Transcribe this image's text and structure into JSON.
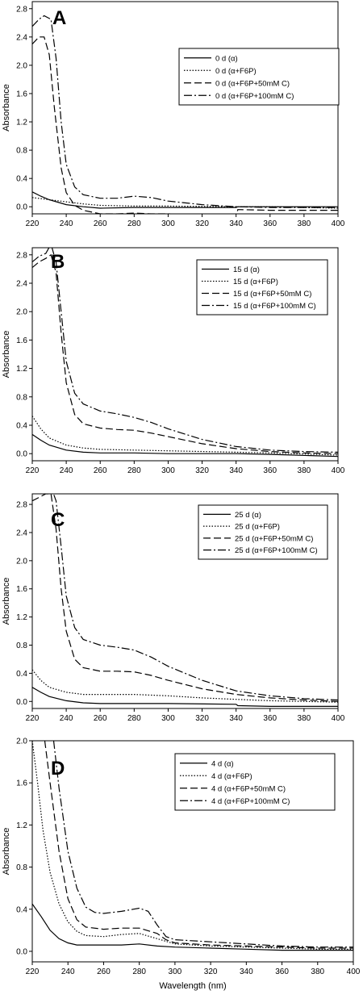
{
  "chart_data": [
    {
      "type": "line",
      "panel_label": "A",
      "xlabel": "",
      "ylabel": "Absorbance",
      "xlim": [
        220,
        400
      ],
      "ylim": [
        -0.1,
        2.9
      ],
      "x_ticks": [
        220,
        240,
        260,
        280,
        300,
        320,
        340,
        360,
        380,
        400
      ],
      "y_ticks": [
        0.0,
        0.4,
        0.8,
        1.2,
        1.6,
        2.0,
        2.4,
        2.8
      ],
      "y_tick_labels": [
        "0.0",
        "0.4",
        "0.8",
        "1.2",
        "1.6",
        "2.0",
        "2.4",
        "2.8"
      ],
      "legend_position": "top-right",
      "series": [
        {
          "name": "0 d (α)",
          "style": "solid",
          "x": [
            220,
            225,
            230,
            240,
            250,
            260,
            280,
            300,
            340,
            341,
            360,
            400
          ],
          "y": [
            0.21,
            0.15,
            0.1,
            0.03,
            0.0,
            -0.02,
            -0.01,
            -0.01,
            -0.01,
            0.0,
            0.0,
            0.0
          ]
        },
        {
          "name": "0 d (α+F6P)",
          "style": "dotted",
          "x": [
            220,
            230,
            240,
            250,
            260,
            280,
            300,
            340,
            341,
            360,
            400
          ],
          "y": [
            0.13,
            0.1,
            0.07,
            0.04,
            0.02,
            0.01,
            0.01,
            0.0,
            0.0,
            0.0,
            -0.02
          ]
        },
        {
          "name": "0 d (α+F6P+50mM C)",
          "style": "dashed",
          "x": [
            220,
            224,
            227,
            230,
            233,
            237,
            240,
            245,
            250,
            260,
            270,
            280,
            290,
            300,
            320,
            340,
            341,
            360,
            400
          ],
          "y": [
            2.3,
            2.4,
            2.4,
            2.15,
            1.4,
            0.55,
            0.2,
            0.02,
            -0.05,
            -0.1,
            -0.1,
            -0.09,
            -0.1,
            -0.1,
            -0.12,
            -0.14,
            -0.04,
            -0.05,
            -0.05
          ]
        },
        {
          "name": "0 d (α+F6P+100mM C)",
          "style": "dashdot",
          "x": [
            220,
            224,
            227,
            231,
            234,
            237,
            240,
            245,
            250,
            260,
            270,
            280,
            290,
            300,
            320,
            340,
            360,
            400
          ],
          "y": [
            2.55,
            2.65,
            2.7,
            2.65,
            2.1,
            1.2,
            0.6,
            0.28,
            0.17,
            0.12,
            0.12,
            0.15,
            0.13,
            0.08,
            0.03,
            0.0,
            -0.01,
            -0.01
          ]
        }
      ]
    },
    {
      "type": "line",
      "panel_label": "B",
      "xlabel": "",
      "ylabel": "Absorbance",
      "xlim": [
        220,
        400
      ],
      "ylim": [
        -0.1,
        2.9
      ],
      "x_ticks": [
        220,
        240,
        260,
        280,
        300,
        320,
        340,
        360,
        380,
        400
      ],
      "y_ticks": [
        0.0,
        0.4,
        0.8,
        1.2,
        1.6,
        2.0,
        2.4,
        2.8
      ],
      "y_tick_labels": [
        "0.0",
        "0.4",
        "0.8",
        "1.2",
        "1.6",
        "2.0",
        "2.4",
        "2.8"
      ],
      "legend_position": "top-right",
      "series": [
        {
          "name": "15 d (α)",
          "style": "solid",
          "x": [
            220,
            225,
            230,
            240,
            250,
            260,
            280,
            300,
            340,
            360,
            400
          ],
          "y": [
            0.27,
            0.19,
            0.12,
            0.05,
            0.02,
            0.01,
            0.01,
            0.0,
            0.0,
            -0.01,
            -0.04
          ]
        },
        {
          "name": "15 d (α+F6P)",
          "style": "dotted",
          "x": [
            220,
            225,
            230,
            240,
            250,
            260,
            280,
            300,
            340,
            360,
            400
          ],
          "y": [
            0.53,
            0.35,
            0.22,
            0.12,
            0.08,
            0.06,
            0.05,
            0.04,
            0.02,
            0.01,
            -0.02
          ]
        },
        {
          "name": "15 d (α+F6P+50mM C)",
          "style": "dashed",
          "x": [
            220,
            224,
            228,
            231,
            234,
            237,
            240,
            245,
            250,
            260,
            270,
            280,
            290,
            300,
            320,
            340,
            360,
            380,
            400
          ],
          "y": [
            2.62,
            2.7,
            2.75,
            2.8,
            2.55,
            1.7,
            1.0,
            0.55,
            0.42,
            0.36,
            0.34,
            0.33,
            0.29,
            0.24,
            0.14,
            0.07,
            0.03,
            0.01,
            0.0
          ]
        },
        {
          "name": "15 d (α+F6P+100mM C)",
          "style": "dashdot",
          "x": [
            220,
            224,
            228,
            231,
            234,
            237,
            240,
            245,
            250,
            260,
            270,
            280,
            290,
            300,
            320,
            340,
            360,
            380,
            400
          ],
          "y": [
            2.7,
            2.78,
            2.82,
            2.95,
            2.7,
            2.0,
            1.3,
            0.85,
            0.7,
            0.6,
            0.56,
            0.51,
            0.44,
            0.35,
            0.2,
            0.1,
            0.05,
            0.03,
            0.02
          ]
        }
      ]
    },
    {
      "type": "line",
      "panel_label": "C",
      "xlabel": "",
      "ylabel": "Absorbance",
      "xlim": [
        220,
        400
      ],
      "ylim": [
        -0.1,
        2.95
      ],
      "x_ticks": [
        220,
        240,
        260,
        280,
        300,
        320,
        340,
        360,
        380,
        400
      ],
      "y_ticks": [
        0.0,
        0.4,
        0.8,
        1.2,
        1.6,
        2.0,
        2.4,
        2.8
      ],
      "y_tick_labels": [
        "0.0",
        "0.4",
        "0.8",
        "1.2",
        "1.6",
        "2.0",
        "2.4",
        "2.8"
      ],
      "legend_position": "top-right",
      "series": [
        {
          "name": "25 d (α)",
          "style": "solid",
          "x": [
            220,
            225,
            230,
            240,
            250,
            260,
            280,
            300,
            340,
            341,
            360,
            400
          ],
          "y": [
            0.2,
            0.13,
            0.07,
            0.01,
            -0.02,
            -0.03,
            -0.03,
            -0.03,
            -0.04,
            -0.06,
            -0.07,
            -0.07
          ]
        },
        {
          "name": "25 d (α+F6P)",
          "style": "dotted",
          "x": [
            220,
            225,
            230,
            240,
            250,
            260,
            280,
            300,
            320,
            340,
            360,
            400
          ],
          "y": [
            0.45,
            0.3,
            0.2,
            0.13,
            0.1,
            0.1,
            0.1,
            0.08,
            0.05,
            0.03,
            0.01,
            -0.01
          ]
        },
        {
          "name": "25 d (α+F6P+50mM C)",
          "style": "dashed",
          "x": [
            220,
            224,
            228,
            231,
            234,
            237,
            240,
            245,
            250,
            260,
            270,
            280,
            290,
            300,
            320,
            340,
            360,
            380,
            400
          ],
          "y": [
            2.85,
            2.9,
            2.95,
            2.95,
            2.45,
            1.6,
            1.0,
            0.6,
            0.48,
            0.43,
            0.43,
            0.42,
            0.37,
            0.3,
            0.18,
            0.1,
            0.05,
            0.02,
            0.0
          ]
        },
        {
          "name": "25 d (α+F6P+100mM C)",
          "style": "dashdot",
          "x": [
            220,
            224,
            228,
            231,
            234,
            237,
            240,
            245,
            250,
            260,
            270,
            280,
            290,
            300,
            320,
            340,
            360,
            380,
            400
          ],
          "y": [
            2.95,
            3.0,
            3.05,
            3.05,
            2.85,
            2.2,
            1.5,
            1.05,
            0.88,
            0.8,
            0.77,
            0.73,
            0.63,
            0.5,
            0.3,
            0.15,
            0.08,
            0.04,
            0.02
          ]
        }
      ]
    },
    {
      "type": "line",
      "panel_label": "D",
      "xlabel": "Wavelength (nm)",
      "ylabel": "Absorbance",
      "xlim": [
        220,
        400
      ],
      "ylim": [
        -0.1,
        2.0
      ],
      "x_ticks": [
        220,
        240,
        260,
        280,
        300,
        320,
        340,
        360,
        380,
        400
      ],
      "y_ticks": [
        0.0,
        0.4,
        0.8,
        1.2,
        1.6,
        2.0
      ],
      "y_tick_labels": [
        "0.0",
        "0.4",
        "0.8",
        "1.2",
        "1.6",
        "2.0"
      ],
      "legend_position": "top-right",
      "series": [
        {
          "name": "4 d (α)",
          "style": "solid",
          "x": [
            220,
            225,
            230,
            235,
            240,
            245,
            250,
            260,
            270,
            280,
            290,
            300,
            320,
            340,
            360,
            380,
            400
          ],
          "y": [
            0.45,
            0.33,
            0.2,
            0.12,
            0.08,
            0.06,
            0.06,
            0.06,
            0.06,
            0.07,
            0.05,
            0.04,
            0.03,
            0.02,
            0.01,
            0.01,
            0.01
          ]
        },
        {
          "name": "4 d (α+F6P)",
          "style": "dotted",
          "x": [
            220,
            223,
            226,
            230,
            235,
            240,
            245,
            250,
            260,
            270,
            280,
            290,
            300,
            320,
            340,
            360,
            380,
            400
          ],
          "y": [
            2.0,
            1.6,
            1.15,
            0.75,
            0.45,
            0.28,
            0.19,
            0.15,
            0.14,
            0.16,
            0.17,
            0.12,
            0.07,
            0.05,
            0.04,
            0.03,
            0.02,
            0.02
          ]
        },
        {
          "name": "4 d (α+F6P+50mM C)",
          "style": "dashed",
          "x": [
            227,
            230,
            235,
            240,
            245,
            250,
            260,
            270,
            280,
            290,
            295,
            300,
            320,
            340,
            360,
            380,
            400
          ],
          "y": [
            2.0,
            1.6,
            0.95,
            0.5,
            0.3,
            0.23,
            0.21,
            0.22,
            0.22,
            0.17,
            0.11,
            0.08,
            0.06,
            0.05,
            0.04,
            0.03,
            0.03
          ]
        },
        {
          "name": "4 d (α+F6P+100mM C)",
          "style": "dashdot",
          "x": [
            232,
            235,
            240,
            245,
            250,
            255,
            260,
            270,
            280,
            285,
            290,
            295,
            300,
            320,
            340,
            360,
            380,
            400
          ],
          "y": [
            2.0,
            1.55,
            0.95,
            0.6,
            0.42,
            0.37,
            0.36,
            0.38,
            0.41,
            0.38,
            0.25,
            0.14,
            0.11,
            0.09,
            0.07,
            0.05,
            0.04,
            0.04
          ]
        }
      ]
    }
  ]
}
